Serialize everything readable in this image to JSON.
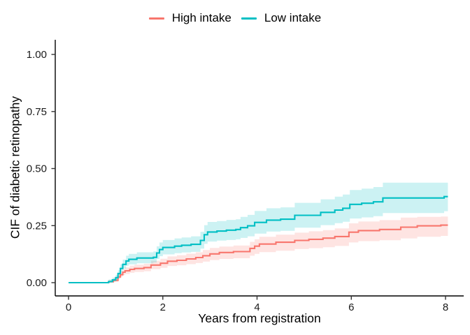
{
  "figure": {
    "background": "#ffffff"
  },
  "legend": {
    "items": [
      {
        "label": "High intake",
        "color": "#F8766D"
      },
      {
        "label": "Low intake",
        "color": "#00BFC4"
      }
    ]
  },
  "axes": {
    "x": {
      "title": "Years from registration",
      "tick_values": [
        0,
        2,
        4,
        6,
        8
      ],
      "tick_labels": [
        "0",
        "2",
        "4",
        "6",
        "8"
      ],
      "range": [
        0,
        8.05
      ]
    },
    "y": {
      "title": "CIF of diabetic retinopathy",
      "tick_values": [
        0,
        0.25,
        0.5,
        0.75,
        1.0
      ],
      "tick_labels": [
        "0.00",
        "0.25",
        "0.50",
        "0.75",
        "1.00"
      ],
      "range": [
        0,
        1.0
      ]
    }
  },
  "chart_data": {
    "type": "line",
    "subtype": "step-cumulative-incidence-with-confidence-bands",
    "title": "",
    "xlabel": "Years from registration",
    "ylabel": "CIF of diabetic retinopathy",
    "xlim": [
      0,
      8.05
    ],
    "ylim": [
      0,
      1.0
    ],
    "grid": false,
    "legend_position": "top",
    "t_end": 8.05,
    "columns": [
      "years",
      "cif",
      "ci_lower",
      "ci_upper"
    ],
    "series": [
      {
        "name": "High intake",
        "color": "#F8766D",
        "band_color": "rgba(248,118,109,0.20)",
        "points": [
          [
            0.0,
            0.0,
            0.0,
            0.0
          ],
          [
            0.85,
            0.004,
            0.001,
            0.012
          ],
          [
            0.95,
            0.01,
            0.004,
            0.019
          ],
          [
            1.05,
            0.025,
            0.016,
            0.037
          ],
          [
            1.1,
            0.035,
            0.025,
            0.048
          ],
          [
            1.15,
            0.046,
            0.033,
            0.06
          ],
          [
            1.2,
            0.052,
            0.038,
            0.067
          ],
          [
            1.3,
            0.058,
            0.043,
            0.074
          ],
          [
            1.4,
            0.062,
            0.047,
            0.079
          ],
          [
            1.6,
            0.066,
            0.05,
            0.083
          ],
          [
            1.75,
            0.077,
            0.059,
            0.096
          ],
          [
            1.95,
            0.085,
            0.065,
            0.105
          ],
          [
            2.1,
            0.094,
            0.073,
            0.115
          ],
          [
            2.3,
            0.098,
            0.076,
            0.12
          ],
          [
            2.5,
            0.104,
            0.081,
            0.127
          ],
          [
            2.7,
            0.11,
            0.086,
            0.133
          ],
          [
            2.85,
            0.118,
            0.092,
            0.143
          ],
          [
            3.0,
            0.126,
            0.099,
            0.152
          ],
          [
            3.2,
            0.132,
            0.104,
            0.158
          ],
          [
            3.5,
            0.136,
            0.107,
            0.163
          ],
          [
            3.85,
            0.15,
            0.118,
            0.179
          ],
          [
            3.95,
            0.16,
            0.126,
            0.19
          ],
          [
            4.05,
            0.169,
            0.134,
            0.201
          ],
          [
            4.4,
            0.177,
            0.14,
            0.21
          ],
          [
            4.8,
            0.185,
            0.147,
            0.219
          ],
          [
            5.1,
            0.19,
            0.151,
            0.225
          ],
          [
            5.4,
            0.195,
            0.155,
            0.23
          ],
          [
            5.65,
            0.202,
            0.161,
            0.238
          ],
          [
            5.95,
            0.221,
            0.176,
            0.26
          ],
          [
            6.15,
            0.228,
            0.182,
            0.268
          ],
          [
            6.6,
            0.233,
            0.186,
            0.274
          ],
          [
            7.05,
            0.243,
            0.194,
            0.285
          ],
          [
            7.4,
            0.249,
            0.201,
            0.288
          ],
          [
            7.9,
            0.252,
            0.205,
            0.29
          ]
        ]
      },
      {
        "name": "Low intake",
        "color": "#00BFC4",
        "band_color": "rgba(0,191,196,0.20)",
        "points": [
          [
            0.0,
            0.0,
            0.0,
            0.0
          ],
          [
            0.85,
            0.005,
            0.001,
            0.014
          ],
          [
            0.93,
            0.012,
            0.005,
            0.022
          ],
          [
            1.0,
            0.022,
            0.013,
            0.034
          ],
          [
            1.05,
            0.04,
            0.028,
            0.054
          ],
          [
            1.1,
            0.062,
            0.047,
            0.08
          ],
          [
            1.15,
            0.08,
            0.062,
            0.101
          ],
          [
            1.22,
            0.095,
            0.074,
            0.118
          ],
          [
            1.28,
            0.102,
            0.08,
            0.126
          ],
          [
            1.45,
            0.108,
            0.085,
            0.133
          ],
          [
            1.8,
            0.111,
            0.088,
            0.137
          ],
          [
            1.87,
            0.13,
            0.104,
            0.159
          ],
          [
            1.93,
            0.145,
            0.116,
            0.176
          ],
          [
            2.0,
            0.154,
            0.124,
            0.187
          ],
          [
            2.25,
            0.16,
            0.129,
            0.194
          ],
          [
            2.4,
            0.164,
            0.132,
            0.198
          ],
          [
            2.6,
            0.168,
            0.135,
            0.203
          ],
          [
            2.8,
            0.185,
            0.149,
            0.223
          ],
          [
            2.88,
            0.21,
            0.17,
            0.252
          ],
          [
            2.95,
            0.222,
            0.18,
            0.266
          ],
          [
            3.15,
            0.226,
            0.184,
            0.27
          ],
          [
            3.35,
            0.23,
            0.187,
            0.275
          ],
          [
            3.55,
            0.233,
            0.19,
            0.278
          ],
          [
            3.65,
            0.241,
            0.196,
            0.288
          ],
          [
            3.8,
            0.249,
            0.203,
            0.297
          ],
          [
            3.95,
            0.264,
            0.215,
            0.314
          ],
          [
            4.2,
            0.274,
            0.224,
            0.326
          ],
          [
            4.5,
            0.278,
            0.227,
            0.33
          ],
          [
            4.8,
            0.295,
            0.241,
            0.35
          ],
          [
            5.35,
            0.308,
            0.252,
            0.365
          ],
          [
            5.65,
            0.318,
            0.261,
            0.377
          ],
          [
            5.82,
            0.326,
            0.267,
            0.386
          ],
          [
            5.97,
            0.343,
            0.281,
            0.406
          ],
          [
            6.22,
            0.348,
            0.286,
            0.412
          ],
          [
            6.47,
            0.354,
            0.291,
            0.419
          ],
          [
            6.67,
            0.371,
            0.305,
            0.438
          ],
          [
            7.97,
            0.377,
            0.313,
            0.438
          ]
        ]
      }
    ]
  }
}
